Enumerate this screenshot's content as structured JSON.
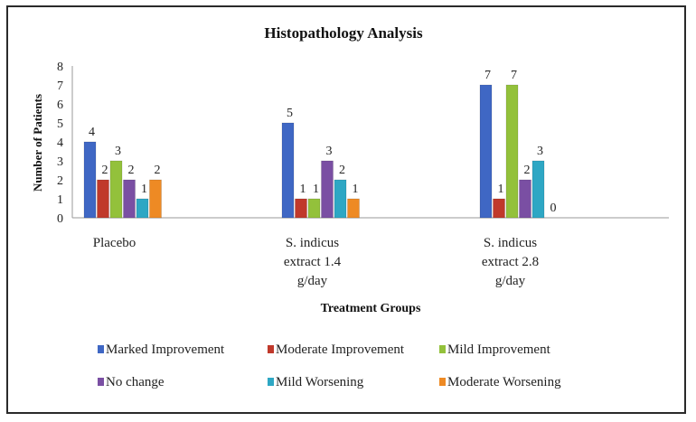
{
  "chart_data": {
    "type": "bar",
    "title": "Histopathology Analysis",
    "xlabel": "Treatment  Groups",
    "ylabel": "Number  of Patients",
    "ylim": [
      0,
      8
    ],
    "yticks": [
      "0",
      "1",
      "2",
      "3",
      "4",
      "5",
      "6",
      "7",
      "8"
    ],
    "categories": [
      [
        "Placebo"
      ],
      [
        "S. indicus",
        "extract 1.4",
        "g/day"
      ],
      [
        "S. indicus",
        "extract 2.8",
        "g/day"
      ]
    ],
    "series": [
      {
        "name": "Marked Improvement",
        "color": "#3f67c4",
        "values": [
          4,
          5,
          7
        ],
        "labels": [
          "4",
          "5",
          "7"
        ]
      },
      {
        "name": "Moderate Improvement",
        "color": "#c0392b",
        "values": [
          2,
          1,
          1
        ],
        "labels": [
          "2",
          "1",
          "1"
        ]
      },
      {
        "name": "Mild Improvement",
        "color": "#93c13b",
        "values": [
          3,
          1,
          7
        ],
        "labels": [
          "3",
          "1",
          "7"
        ]
      },
      {
        "name": "No change",
        "color": "#7a4fa3",
        "values": [
          2,
          3,
          2
        ],
        "labels": [
          "2",
          "3",
          "2"
        ]
      },
      {
        "name": "Mild Worsening",
        "color": "#2ea7c4",
        "values": [
          1,
          2,
          3
        ],
        "labels": [
          "1",
          "2",
          "3"
        ]
      },
      {
        "name": "Moderate Worsening",
        "color": "#ee8a24",
        "values": [
          2,
          1,
          0
        ],
        "labels": [
          "2",
          "1",
          "0"
        ]
      }
    ],
    "grid": false,
    "legend_position": "bottom"
  }
}
